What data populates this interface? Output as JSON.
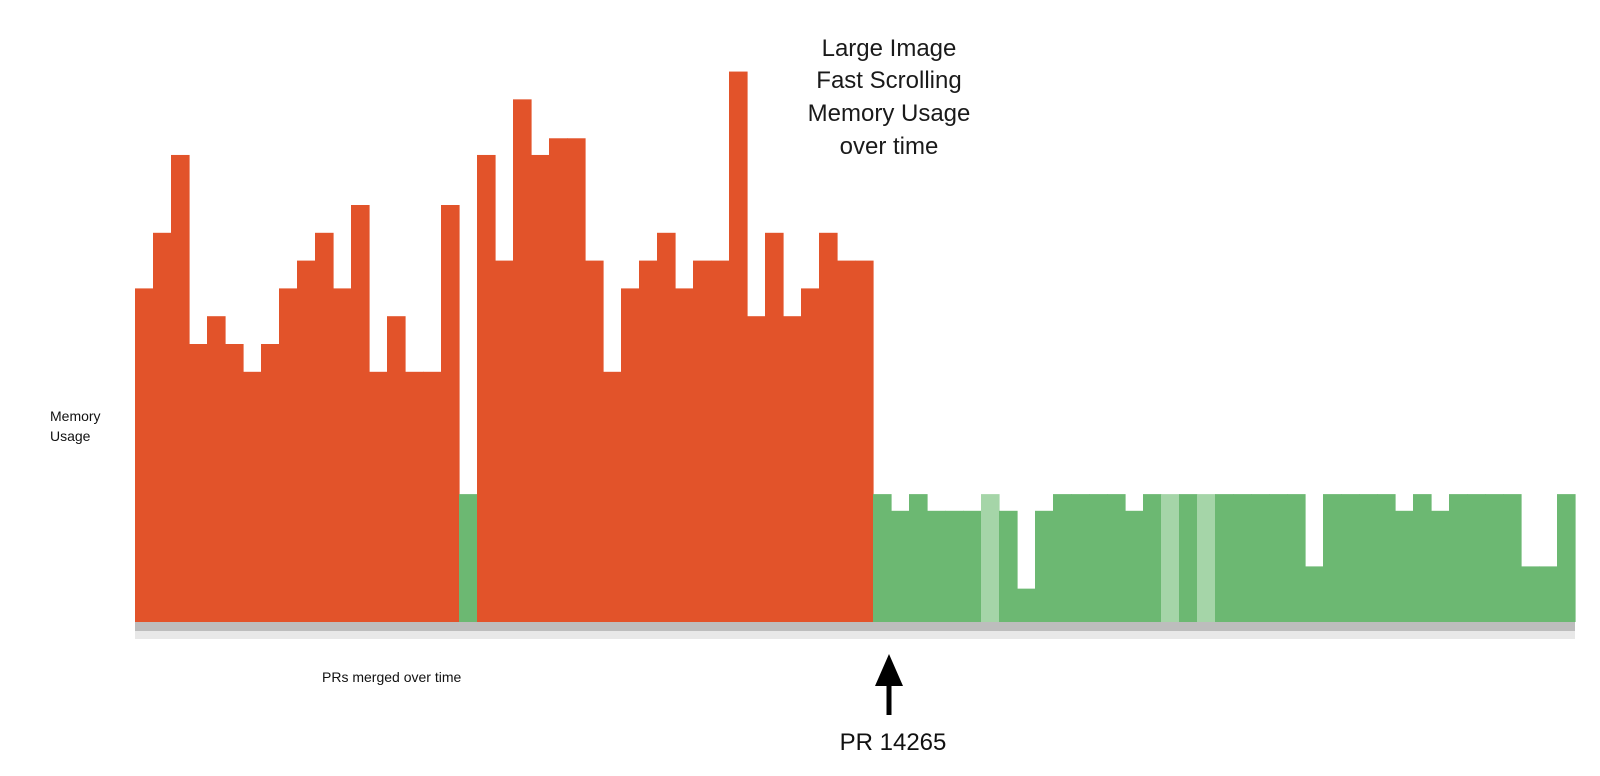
{
  "chart_data": {
    "type": "bar",
    "title_lines": [
      "Large Image",
      "Fast Scrolling",
      "Memory Usage",
      "over time"
    ],
    "ylabel_lines": [
      "Memory",
      "Usage"
    ],
    "xlabel": "PRs merged over time",
    "grid": false,
    "legend": "none",
    "ylim": [
      0,
      100
    ],
    "colors": {
      "high": "#e2532a",
      "low": "#6cb872",
      "low_faded": "#a5d5a8",
      "baseline": "#bdbdbd",
      "baseline_light": "#e8e8e8",
      "arrow": "#000000"
    },
    "values": [
      60,
      70,
      84,
      50,
      55,
      50,
      45,
      50,
      60,
      65,
      70,
      60,
      75,
      45,
      55,
      45,
      45,
      75,
      23,
      84,
      65,
      94,
      84,
      87,
      87,
      65,
      45,
      60,
      65,
      70,
      60,
      65,
      65,
      99,
      55,
      70,
      55,
      60,
      70,
      65,
      65,
      23,
      20,
      23,
      20,
      20,
      20,
      23,
      20,
      6,
      20,
      23,
      23,
      23,
      23,
      20,
      23,
      23,
      23,
      23,
      23,
      23,
      23,
      23,
      23,
      10,
      23,
      23,
      23,
      23,
      20,
      23,
      20,
      23,
      23,
      23,
      23,
      10,
      10,
      23
    ],
    "status": [
      "high",
      "high",
      "high",
      "high",
      "high",
      "high",
      "high",
      "high",
      "high",
      "high",
      "high",
      "high",
      "high",
      "high",
      "high",
      "high",
      "high",
      "high",
      "low",
      "high",
      "high",
      "high",
      "high",
      "high",
      "high",
      "high",
      "high",
      "high",
      "high",
      "high",
      "high",
      "high",
      "high",
      "high",
      "high",
      "high",
      "high",
      "high",
      "high",
      "high",
      "high",
      "low",
      "low",
      "low",
      "low",
      "low",
      "low",
      "low_faded",
      "low",
      "low",
      "low",
      "low",
      "low",
      "low",
      "low",
      "low",
      "low",
      "low_faded",
      "low",
      "low_faded",
      "low",
      "low",
      "low",
      "low",
      "low",
      "low",
      "low",
      "low",
      "low",
      "low",
      "low",
      "low",
      "low",
      "low",
      "low",
      "low",
      "low",
      "low",
      "low",
      "low"
    ],
    "annotation": {
      "label": "PR 14265",
      "at_index": 41
    }
  }
}
